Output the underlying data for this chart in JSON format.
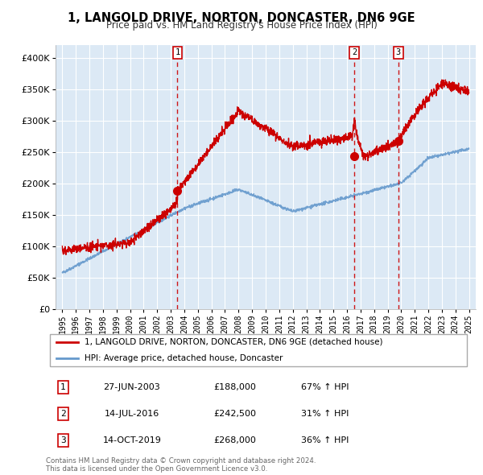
{
  "title": "1, LANGOLD DRIVE, NORTON, DONCASTER, DN6 9GE",
  "subtitle": "Price paid vs. HM Land Registry's House Price Index (HPI)",
  "background_color": "#ffffff",
  "plot_bg_color": "#dce9f5",
  "grid_color": "#ffffff",
  "red_line_color": "#cc0000",
  "blue_line_color": "#6699cc",
  "dashed_line_color": "#cc0000",
  "legend_label_red": "1, LANGOLD DRIVE, NORTON, DONCASTER, DN6 9GE (detached house)",
  "legend_label_blue": "HPI: Average price, detached house, Doncaster",
  "transactions": [
    {
      "num": 1,
      "date": "27-JUN-2003",
      "date_x": 2003.49,
      "price": 188000,
      "pct": "67%",
      "direction": "↑"
    },
    {
      "num": 2,
      "date": "14-JUL-2016",
      "date_x": 2016.54,
      "price": 242500,
      "pct": "31%",
      "direction": "↑"
    },
    {
      "num": 3,
      "date": "14-OCT-2019",
      "date_x": 2019.79,
      "price": 268000,
      "pct": "36%",
      "direction": "↑"
    }
  ],
  "footer": "Contains HM Land Registry data © Crown copyright and database right 2024.\nThis data is licensed under the Open Government Licence v3.0.",
  "ylim": [
    0,
    420000
  ],
  "yticks": [
    0,
    50000,
    100000,
    150000,
    200000,
    250000,
    300000,
    350000,
    400000
  ],
  "ytick_labels": [
    "£0",
    "£50K",
    "£100K",
    "£150K",
    "£200K",
    "£250K",
    "£300K",
    "£350K",
    "£400K"
  ],
  "xlim_start": 1994.5,
  "xlim_end": 2025.5,
  "xticks": [
    1995,
    1996,
    1997,
    1998,
    1999,
    2000,
    2001,
    2002,
    2003,
    2004,
    2005,
    2006,
    2007,
    2008,
    2009,
    2010,
    2011,
    2012,
    2013,
    2014,
    2015,
    2016,
    2017,
    2018,
    2019,
    2020,
    2021,
    2022,
    2023,
    2024,
    2025
  ]
}
